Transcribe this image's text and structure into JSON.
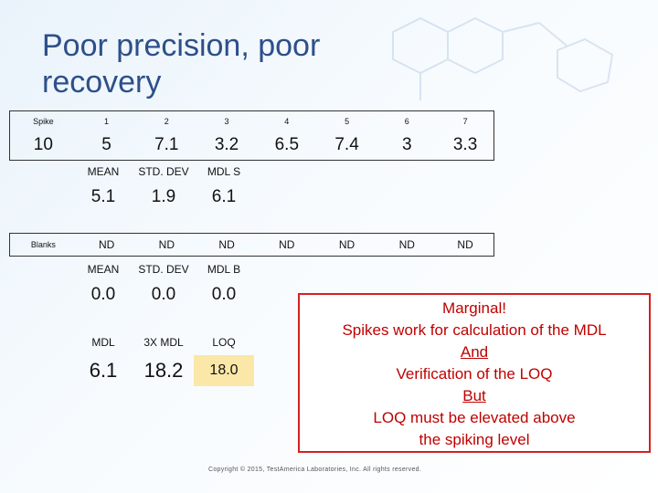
{
  "title": "Poor precision, poor recovery",
  "spike_table": {
    "row_label": "Spike",
    "headers": [
      "1",
      "2",
      "3",
      "4",
      "5",
      "6",
      "7"
    ],
    "spike_value": "10",
    "values": [
      "5",
      "7.1",
      "3.2",
      "6.5",
      "7.4",
      "3",
      "3.3"
    ]
  },
  "spike_stats": {
    "headers": [
      "MEAN",
      "STD. DEV",
      "MDL S"
    ],
    "values": [
      "5.1",
      "1.9",
      "6.1"
    ]
  },
  "blanks_table": {
    "row_label": "Blanks",
    "values": [
      "ND",
      "ND",
      "ND",
      "ND",
      "ND",
      "ND",
      "ND"
    ]
  },
  "blank_stats": {
    "headers": [
      "MEAN",
      "STD. DEV",
      "MDL B"
    ],
    "values": [
      "0.0",
      "0.0",
      "0.0"
    ]
  },
  "limits": {
    "headers": [
      "MDL",
      "3X MDL",
      "LOQ"
    ],
    "values": [
      "6.1",
      "18.2",
      "18.0"
    ]
  },
  "callout": {
    "line1": "Marginal!",
    "line2": "Spikes work for calculation of the MDL",
    "line3": "And",
    "line4": "Verification of the LOQ",
    "line5": "But",
    "line6": "LOQ must be elevated above",
    "line7": "the spiking level"
  },
  "copyright": "Copyright © 2015, TestAmerica Laboratories, Inc. All rights reserved.",
  "colors": {
    "title": "#2d4f8a",
    "callout_border": "#d62020",
    "callout_text": "#c00000",
    "loq_highlight": "#fbe7a8"
  }
}
